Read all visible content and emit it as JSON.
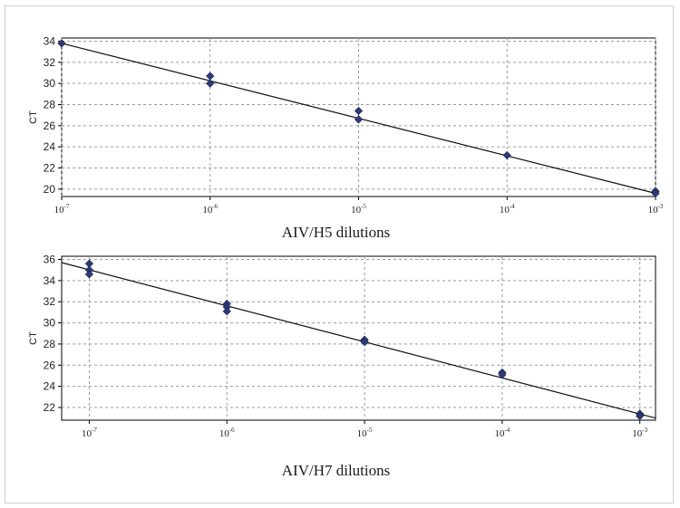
{
  "colors": {
    "marker": "#2e3a78",
    "line": "#111111",
    "grid": "#9a9a9a",
    "frame": "#cfcfcf"
  },
  "chart_data": [
    {
      "type": "scatter",
      "xscale": "log",
      "xlabel": "AIV/H5 dilutions",
      "ylabel": "CT",
      "xlim": [
        1e-07,
        0.001
      ],
      "ylim": [
        19.3,
        34.3
      ],
      "yticks": [
        20,
        22,
        24,
        26,
        28,
        30,
        32,
        34
      ],
      "xticks": [
        {
          "value": 1e-07,
          "base": "10",
          "exp": "-7"
        },
        {
          "value": 1e-06,
          "base": "10",
          "exp": "-6"
        },
        {
          "value": 1e-05,
          "base": "10",
          "exp": "-5"
        },
        {
          "value": 0.0001,
          "base": "10",
          "exp": "-4"
        },
        {
          "value": 0.001,
          "base": "10",
          "exp": "-3"
        }
      ],
      "grid": true,
      "points": [
        {
          "x": 1e-07,
          "y": 33.8
        },
        {
          "x": 1e-06,
          "y": 30.7
        },
        {
          "x": 1e-06,
          "y": 30.0
        },
        {
          "x": 1e-05,
          "y": 27.4
        },
        {
          "x": 1e-05,
          "y": 26.6
        },
        {
          "x": 0.0001,
          "y": 23.2
        },
        {
          "x": 0.001,
          "y": 19.8
        },
        {
          "x": 0.001,
          "y": 19.6
        }
      ],
      "fit": [
        {
          "x": 1e-07,
          "y": 33.8
        },
        {
          "x": 0.001,
          "y": 19.6
        }
      ]
    },
    {
      "type": "scatter",
      "xscale": "log",
      "xlabel": "AIV/H7 dilutions",
      "ylabel": "CT",
      "xlim": [
        6.3e-08,
        0.0013
      ],
      "ylim": [
        20.8,
        36.3
      ],
      "yticks": [
        22,
        24,
        26,
        28,
        30,
        32,
        34,
        36
      ],
      "xticks": [
        {
          "value": 1e-07,
          "base": "10",
          "exp": "-7"
        },
        {
          "value": 1e-06,
          "base": "10",
          "exp": "-6"
        },
        {
          "value": 1e-05,
          "base": "10",
          "exp": "-5"
        },
        {
          "value": 0.0001,
          "base": "10",
          "exp": "-4"
        },
        {
          "value": 0.001,
          "base": "10",
          "exp": "-3"
        }
      ],
      "grid": true,
      "points": [
        {
          "x": 1e-07,
          "y": 35.6
        },
        {
          "x": 1e-07,
          "y": 35.0
        },
        {
          "x": 1e-07,
          "y": 34.6
        },
        {
          "x": 1e-06,
          "y": 31.8
        },
        {
          "x": 1e-06,
          "y": 31.5
        },
        {
          "x": 1e-06,
          "y": 31.1
        },
        {
          "x": 1e-05,
          "y": 28.4
        },
        {
          "x": 1e-05,
          "y": 28.2
        },
        {
          "x": 0.0001,
          "y": 25.3
        },
        {
          "x": 0.0001,
          "y": 25.1
        },
        {
          "x": 0.001,
          "y": 21.4
        },
        {
          "x": 0.001,
          "y": 21.2
        }
      ],
      "fit": [
        {
          "x": 6.3e-08,
          "y": 35.7
        },
        {
          "x": 0.0013,
          "y": 21.0
        }
      ]
    }
  ]
}
